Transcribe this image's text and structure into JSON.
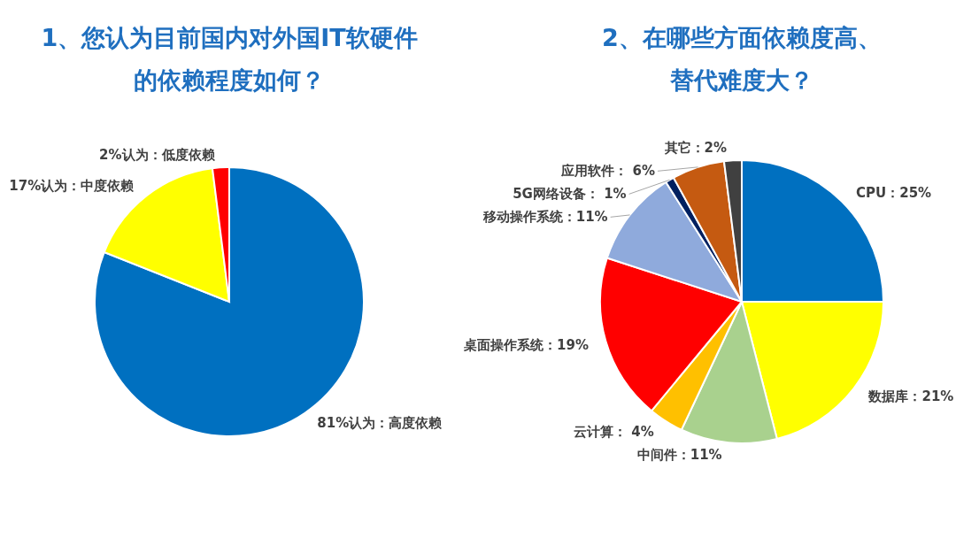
{
  "chart_data": [
    {
      "type": "pie",
      "title": "1、您认为目前国内对外国IT软硬件的依赖程度如何？",
      "categories": [
        "81%认为：高度依赖",
        "17%认为：中度依赖",
        "2%认为：低度依赖"
      ],
      "values": [
        81,
        17,
        2
      ],
      "colors": [
        "#0070c0",
        "#ffff00",
        "#ff0000"
      ]
    },
    {
      "type": "pie",
      "title": "2、在哪些方面依赖度高、替代难度大？",
      "categories": [
        "CPU：25%",
        "数据库：21%",
        "中间件：11%",
        "云计算： 4%",
        "桌面操作系统：19%",
        "移动操作系统：11%",
        "5G网络设备： 1%",
        "应用软件： 6%",
        "其它：2%"
      ],
      "values": [
        25,
        21,
        11,
        4,
        19,
        11,
        1,
        6,
        2
      ],
      "colors": [
        "#0070c0",
        "#ffff00",
        "#a9d18e",
        "#ffc000",
        "#ff0000",
        "#8faadc",
        "#002060",
        "#c55a11",
        "#404040"
      ]
    }
  ]
}
